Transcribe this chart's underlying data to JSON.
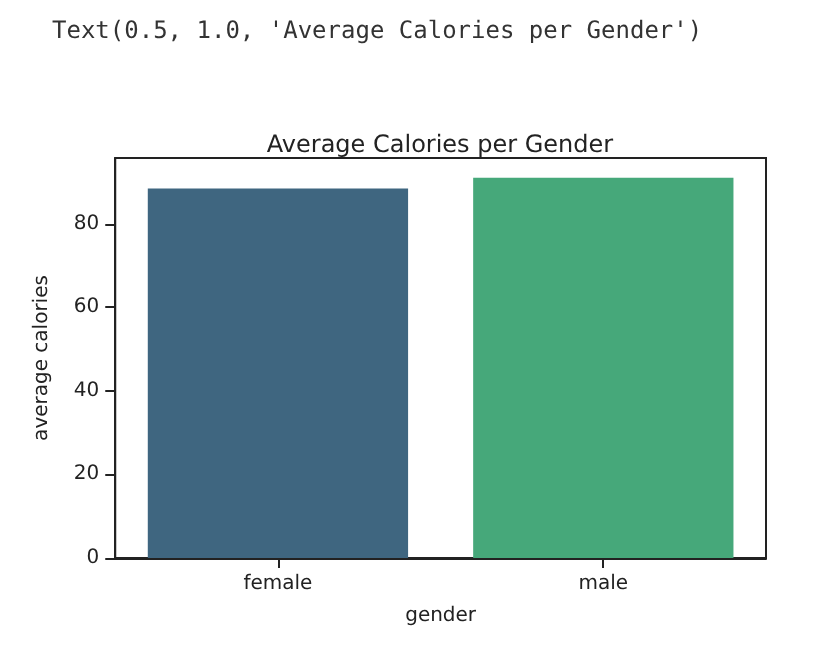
{
  "chart_data": {
    "type": "bar",
    "title": "Average Calories per Gender",
    "xlabel": "gender",
    "ylabel": "average calories",
    "annotations": [
      "Text(0.5, 1.0, 'Average Calories per Gender')"
    ],
    "categories": [
      "female",
      "male"
    ],
    "values": [
      88.4,
      91.0
    ],
    "colors": [
      "#3f6680",
      "#46a87a"
    ],
    "ylim": [
      0,
      95.7
    ],
    "yticks": [
      0,
      20,
      40,
      60,
      80
    ],
    "grid": false
  }
}
